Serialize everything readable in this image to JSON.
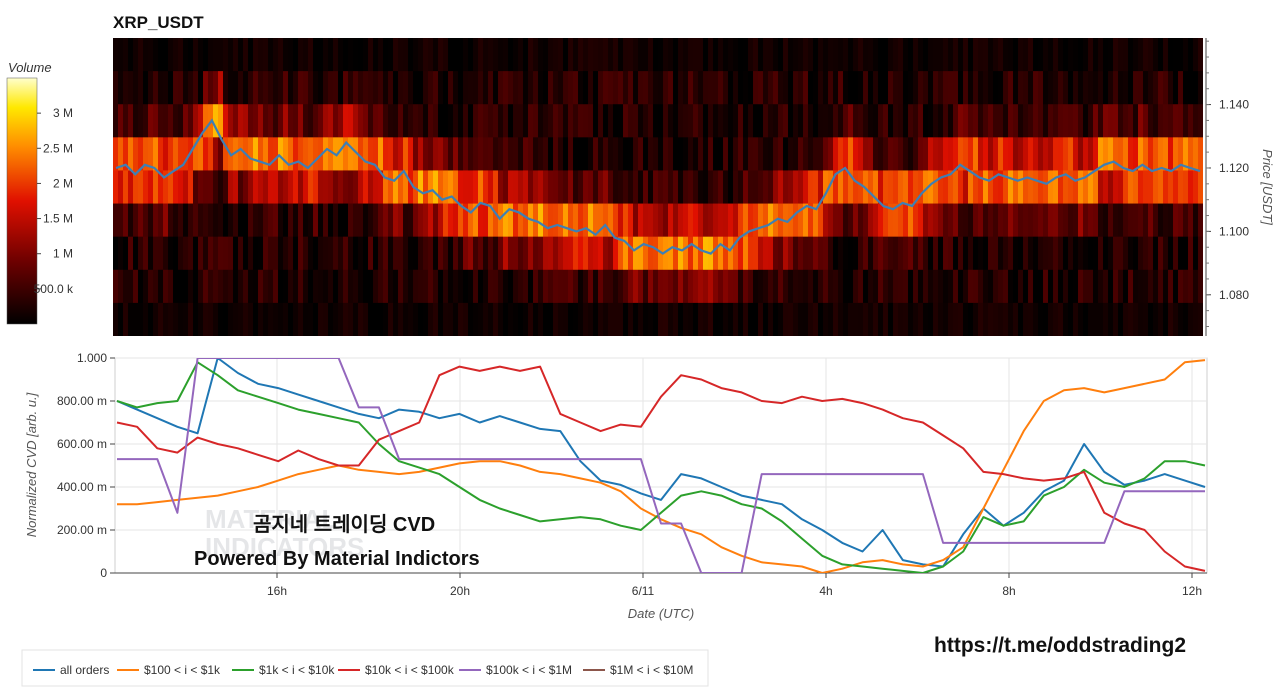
{
  "title": "XRP_USDT",
  "colorbar": {
    "title": "Volume",
    "ticks": [
      "500.0 k",
      "1 M",
      "1.5 M",
      "2 M",
      "2.5 M",
      "3 M"
    ],
    "tick_values": [
      500000,
      1000000,
      1500000,
      2000000,
      2500000,
      3000000
    ],
    "range": [
      0,
      3500000
    ]
  },
  "heatmap": {
    "y_label": "Price [USDT]",
    "y_ticks": [
      "1.080",
      "1.100",
      "1.120",
      "1.140"
    ],
    "y_tick_values": [
      1.08,
      1.1,
      1.12,
      1.14
    ],
    "y_range": [
      1.067,
      1.161
    ],
    "price_line_color": "#3d7fb5",
    "price_series": [
      1.12,
      1.121,
      1.118,
      1.121,
      1.12,
      1.117,
      1.119,
      1.121,
      1.126,
      1.131,
      1.135,
      1.129,
      1.124,
      1.126,
      1.123,
      1.122,
      1.121,
      1.124,
      1.121,
      1.122,
      1.12,
      1.123,
      1.126,
      1.124,
      1.128,
      1.125,
      1.122,
      1.121,
      1.117,
      1.116,
      1.119,
      1.114,
      1.112,
      1.113,
      1.11,
      1.111,
      1.108,
      1.106,
      1.109,
      1.108,
      1.104,
      1.107,
      1.106,
      1.104,
      1.103,
      1.101,
      1.102,
      1.101,
      1.1,
      1.101,
      1.099,
      1.102,
      1.098,
      1.097,
      1.094,
      1.096,
      1.095,
      1.093,
      1.095,
      1.094,
      1.096,
      1.094,
      1.093,
      1.096,
      1.094,
      1.098,
      1.1,
      1.101,
      1.102,
      1.104,
      1.103,
      1.106,
      1.108,
      1.107,
      1.112,
      1.118,
      1.12,
      1.116,
      1.114,
      1.111,
      1.108,
      1.107,
      1.109,
      1.108,
      1.112,
      1.115,
      1.117,
      1.118,
      1.121,
      1.119,
      1.117,
      1.116,
      1.118,
      1.117,
      1.116,
      1.117,
      1.116,
      1.115,
      1.117,
      1.118,
      1.116,
      1.117,
      1.119,
      1.121,
      1.122,
      1.12,
      1.119,
      1.121,
      1.119,
      1.12,
      1.119,
      1.121,
      1.12,
      1.119
    ]
  },
  "cvd": {
    "y_label": "Normalized CVD [arb. u.]",
    "y_ticks": [
      "0",
      "200.00 m",
      "400.00 m",
      "600.00 m",
      "800.00 m",
      "1.000"
    ],
    "y_tick_values": [
      0,
      0.2,
      0.4,
      0.6,
      0.8,
      1.0
    ],
    "y_range": [
      0,
      1.0
    ],
    "x_label": "Date (UTC)",
    "x_ticks": [
      "16h",
      "20h",
      "6/11",
      "4h",
      "8h",
      "12h"
    ]
  },
  "chart_data": {
    "type": "line",
    "x_ticks": [
      "16h",
      "20h",
      "6/11",
      "4h",
      "8h",
      "12h"
    ],
    "series": [
      {
        "name": "all orders",
        "color": "#1f77b4",
        "values": [
          0.8,
          0.76,
          0.72,
          0.68,
          0.65,
          1.0,
          0.93,
          0.88,
          0.86,
          0.83,
          0.8,
          0.77,
          0.74,
          0.72,
          0.76,
          0.75,
          0.72,
          0.74,
          0.7,
          0.73,
          0.7,
          0.67,
          0.66,
          0.52,
          0.43,
          0.41,
          0.37,
          0.34,
          0.46,
          0.44,
          0.4,
          0.36,
          0.34,
          0.32,
          0.25,
          0.2,
          0.14,
          0.1,
          0.2,
          0.06,
          0.04,
          0.03,
          0.18,
          0.3,
          0.22,
          0.28,
          0.38,
          0.43,
          0.6,
          0.47,
          0.41,
          0.43,
          0.46,
          0.43,
          0.4
        ]
      },
      {
        "name": "$100 < i < $1k",
        "color": "#ff7f0e",
        "values": [
          0.32,
          0.32,
          0.33,
          0.34,
          0.35,
          0.36,
          0.38,
          0.4,
          0.43,
          0.46,
          0.48,
          0.5,
          0.48,
          0.47,
          0.46,
          0.47,
          0.49,
          0.51,
          0.52,
          0.52,
          0.5,
          0.47,
          0.46,
          0.44,
          0.42,
          0.38,
          0.3,
          0.25,
          0.21,
          0.18,
          0.12,
          0.08,
          0.05,
          0.04,
          0.03,
          0.0,
          0.02,
          0.05,
          0.06,
          0.04,
          0.03,
          0.06,
          0.12,
          0.3,
          0.48,
          0.66,
          0.8,
          0.85,
          0.86,
          0.84,
          0.86,
          0.88,
          0.9,
          0.98,
          0.99
        ]
      },
      {
        "name": "$1k < i < $10k",
        "color": "#2ca02c",
        "values": [
          0.8,
          0.77,
          0.79,
          0.8,
          0.98,
          0.92,
          0.85,
          0.82,
          0.79,
          0.76,
          0.74,
          0.72,
          0.7,
          0.6,
          0.52,
          0.49,
          0.46,
          0.4,
          0.34,
          0.3,
          0.27,
          0.24,
          0.25,
          0.26,
          0.25,
          0.22,
          0.2,
          0.28,
          0.36,
          0.38,
          0.36,
          0.32,
          0.3,
          0.24,
          0.16,
          0.08,
          0.04,
          0.03,
          0.02,
          0.01,
          0.0,
          0.03,
          0.1,
          0.26,
          0.22,
          0.24,
          0.36,
          0.4,
          0.48,
          0.42,
          0.4,
          0.44,
          0.52,
          0.52,
          0.5
        ]
      },
      {
        "name": "$10k < i < $100k",
        "color": "#d62728",
        "values": [
          0.7,
          0.68,
          0.58,
          0.56,
          0.63,
          0.6,
          0.58,
          0.55,
          0.52,
          0.57,
          0.53,
          0.5,
          0.5,
          0.62,
          0.66,
          0.7,
          0.92,
          0.96,
          0.94,
          0.96,
          0.94,
          0.96,
          0.74,
          0.7,
          0.66,
          0.69,
          0.68,
          0.82,
          0.92,
          0.9,
          0.86,
          0.84,
          0.8,
          0.79,
          0.82,
          0.8,
          0.81,
          0.79,
          0.76,
          0.72,
          0.7,
          0.64,
          0.58,
          0.47,
          0.46,
          0.44,
          0.43,
          0.44,
          0.47,
          0.28,
          0.23,
          0.2,
          0.1,
          0.03,
          0.01
        ]
      },
      {
        "name": "$100k < i < $1M",
        "color": "#9467bd",
        "values": [
          0.53,
          0.53,
          0.53,
          0.28,
          1.0,
          1.0,
          1.0,
          1.0,
          1.0,
          1.0,
          1.0,
          1.0,
          0.77,
          0.77,
          0.53,
          0.53,
          0.53,
          0.53,
          0.53,
          0.53,
          0.53,
          0.53,
          0.53,
          0.53,
          0.53,
          0.53,
          0.53,
          0.23,
          0.23,
          0.0,
          0.0,
          0.0,
          0.46,
          0.46,
          0.46,
          0.46,
          0.46,
          0.46,
          0.46,
          0.46,
          0.46,
          0.14,
          0.14,
          0.14,
          0.14,
          0.14,
          0.14,
          0.14,
          0.14,
          0.14,
          0.38,
          0.38,
          0.38,
          0.38,
          0.38
        ]
      },
      {
        "name": "$1M < i < $10M",
        "color": "#8c564b",
        "values": []
      }
    ],
    "ylim": [
      0,
      1.0
    ],
    "xlabel": "Date (UTC)",
    "ylabel": "Normalized CVD [arb. u.]"
  },
  "overlay": {
    "line1": "곰지네 트레이딩 CVD",
    "line2": "Powered By Material Indictors",
    "watermark1": "MATERIAL",
    "watermark2": "INDICATORS",
    "link": "https://t.me/oddstrading2"
  }
}
